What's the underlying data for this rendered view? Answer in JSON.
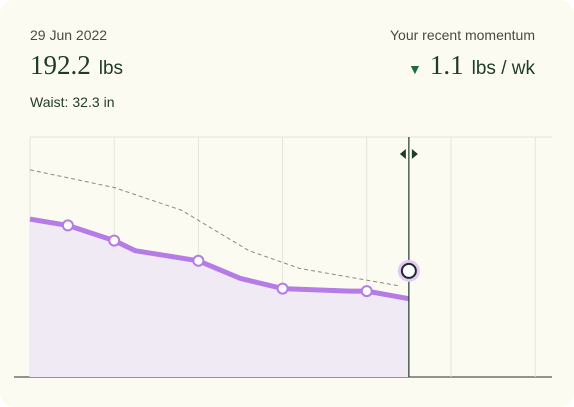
{
  "date": "29 Jun 2022",
  "weight": 192.2,
  "weight_unit": "lbs",
  "waist_label": "Waist:",
  "waist": 32.3,
  "waist_unit": "in",
  "momentum_label": "Your recent momentum",
  "momentum_arrow": "▼",
  "momentum": 1.1,
  "momentum_unit": "lbs / wk",
  "chart_data": {
    "type": "line",
    "xlim": [
      0,
      6.2
    ],
    "ylim": [
      188,
      197.5
    ],
    "xticks": [
      0,
      1,
      2,
      3,
      4,
      5,
      6
    ],
    "grid": true,
    "cursor_x": 4.5,
    "series": [
      {
        "style": "area-line",
        "color": "#b57be6",
        "fill": "#efeaf3",
        "x": [
          0,
          0.45,
          1,
          1.25,
          2,
          2.5,
          3,
          3.8,
          4,
          4.5
        ],
        "values": [
          194.25,
          194.0,
          193.4,
          193.0,
          192.6,
          191.9,
          191.5,
          191.4,
          191.4,
          191.1
        ]
      },
      {
        "style": "dashed",
        "color": "#8a8a85",
        "x": [
          0,
          1,
          1.8,
          2.6,
          3.2,
          4.4
        ],
        "values": [
          196.2,
          195.5,
          194.6,
          193.0,
          192.3,
          191.6
        ]
      },
      {
        "style": "points",
        "color": "#b57be6",
        "x": [
          0.45,
          1,
          2,
          3,
          4
        ],
        "values": [
          194.0,
          193.4,
          192.6,
          191.5,
          191.4
        ]
      }
    ]
  }
}
